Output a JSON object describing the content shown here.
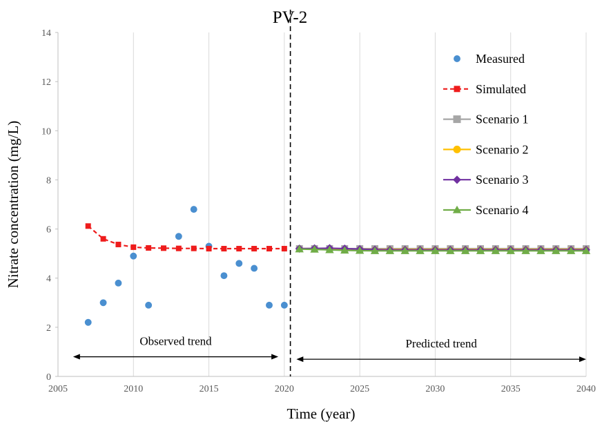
{
  "chart_data": {
    "type": "line",
    "title": "PV-2",
    "xlabel": "Time (year)",
    "ylabel": "Nitrate concentration  (mg/L)",
    "xlim": [
      2005,
      2040
    ],
    "ylim": [
      0,
      14
    ],
    "xticks": [
      2005,
      2010,
      2015,
      2020,
      2025,
      2030,
      2035,
      2040
    ],
    "yticks": [
      0,
      2,
      4,
      6,
      8,
      10,
      12,
      14
    ],
    "grid": {
      "vertical": true,
      "horizontal": false
    },
    "divider_x": 2020.4,
    "legend_placement": "top-right",
    "series": [
      {
        "name": "Measured",
        "kind": "marker",
        "marker": "circle",
        "color": "#4a8fd0",
        "x": [
          2007,
          2008,
          2009,
          2010,
          2011,
          2013,
          2014,
          2015,
          2016,
          2017,
          2018,
          2019,
          2020
        ],
        "y": [
          2.2,
          3.0,
          3.8,
          4.9,
          2.9,
          5.7,
          6.8,
          5.3,
          4.1,
          4.6,
          4.4,
          2.9,
          2.9
        ]
      },
      {
        "name": "Simulated",
        "kind": "dashed",
        "marker": "square",
        "color": "#ee1c1c",
        "x": [
          2007,
          2008,
          2009,
          2010,
          2011,
          2012,
          2013,
          2014,
          2015,
          2016,
          2017,
          2018,
          2019,
          2020
        ],
        "y": [
          6.12,
          5.6,
          5.37,
          5.26,
          5.23,
          5.22,
          5.21,
          5.21,
          5.2,
          5.2,
          5.2,
          5.2,
          5.2,
          5.2
        ]
      },
      {
        "name": "Scenario 1",
        "kind": "solid",
        "marker": "square",
        "color": "#a6a6a6",
        "x": [
          2021,
          2022,
          2023,
          2024,
          2025,
          2026,
          2027,
          2028,
          2029,
          2030,
          2031,
          2032,
          2033,
          2034,
          2035,
          2036,
          2037,
          2038,
          2039,
          2040
        ],
        "y": [
          5.2,
          5.2,
          5.2,
          5.2,
          5.2,
          5.2,
          5.2,
          5.2,
          5.2,
          5.2,
          5.2,
          5.2,
          5.2,
          5.2,
          5.2,
          5.2,
          5.2,
          5.2,
          5.2,
          5.2
        ]
      },
      {
        "name": "Scenario 2",
        "kind": "solid",
        "marker": "circle",
        "color": "#ffc000",
        "x": [
          2021,
          2022,
          2023,
          2024,
          2025,
          2026,
          2027,
          2028,
          2029,
          2030,
          2031,
          2032,
          2033,
          2034,
          2035,
          2036,
          2037,
          2038,
          2039,
          2040
        ],
        "y": [
          5.2,
          5.2,
          5.19,
          5.18,
          5.18,
          5.17,
          5.17,
          5.17,
          5.17,
          5.17,
          5.17,
          5.17,
          5.17,
          5.17,
          5.17,
          5.17,
          5.17,
          5.17,
          5.17,
          5.17
        ]
      },
      {
        "name": "Scenario 3",
        "kind": "solid",
        "marker": "diamond",
        "color": "#7030a0",
        "x": [
          2021,
          2022,
          2023,
          2024,
          2025,
          2026,
          2027,
          2028,
          2029,
          2030,
          2031,
          2032,
          2033,
          2034,
          2035,
          2036,
          2037,
          2038,
          2039,
          2040
        ],
        "y": [
          5.2,
          5.21,
          5.22,
          5.2,
          5.18,
          5.16,
          5.15,
          5.15,
          5.15,
          5.15,
          5.15,
          5.15,
          5.15,
          5.15,
          5.15,
          5.15,
          5.15,
          5.15,
          5.15,
          5.15
        ]
      },
      {
        "name": "Scenario 4",
        "kind": "solid",
        "marker": "triangle",
        "color": "#70ad47",
        "x": [
          2021,
          2022,
          2023,
          2024,
          2025,
          2026,
          2027,
          2028,
          2029,
          2030,
          2031,
          2032,
          2033,
          2034,
          2035,
          2036,
          2037,
          2038,
          2039,
          2040
        ],
        "y": [
          5.18,
          5.17,
          5.15,
          5.13,
          5.12,
          5.11,
          5.11,
          5.11,
          5.11,
          5.11,
          5.11,
          5.11,
          5.11,
          5.11,
          5.11,
          5.11,
          5.11,
          5.11,
          5.11,
          5.11
        ]
      }
    ],
    "annotations": [
      {
        "text": "Observed trend",
        "x_from": 2006,
        "x_to": 2019.6,
        "y": 0.8
      },
      {
        "text": "Predicted trend",
        "x_from": 2020.8,
        "x_to": 2040,
        "y": 0.7
      }
    ]
  }
}
